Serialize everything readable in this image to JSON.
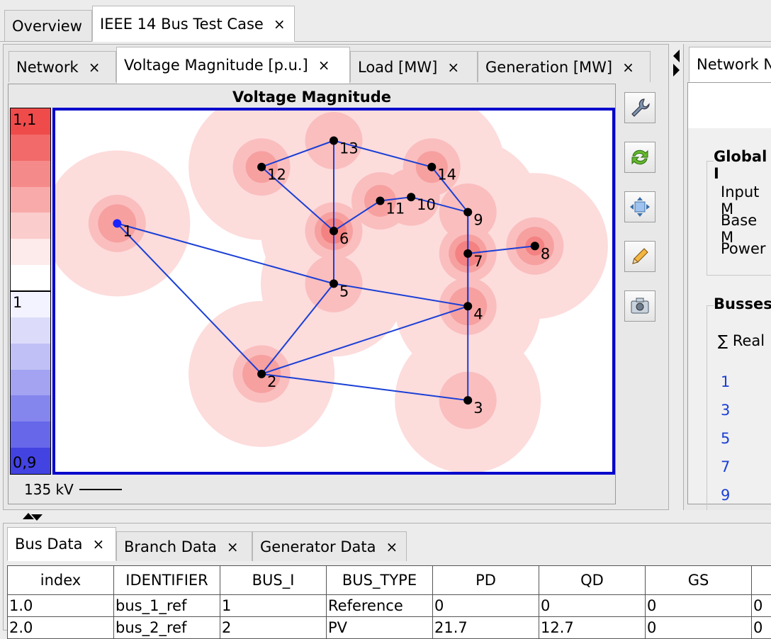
{
  "doc_tabs": [
    {
      "label": "Overview"
    },
    {
      "label": "IEEE 14 Bus Test Case",
      "close": "×"
    }
  ],
  "view_tabs": [
    {
      "label": "Network",
      "close": "×"
    },
    {
      "label": "Voltage Magnitude [p.u.]",
      "close": "×"
    },
    {
      "label": "Load [MW]",
      "close": "×"
    },
    {
      "label": "Generation [MW]",
      "close": "×"
    }
  ],
  "map": {
    "title": "Voltage Magnitude",
    "legend_max": "1,1",
    "legend_mid": "1",
    "legend_min": "0,9",
    "legend_colors": [
      "#ef4b4b",
      "#f36a6a",
      "#f58a8a",
      "#f8aaaa",
      "#fbcccc",
      "#fdeaea",
      "#ffffff",
      "#f3f3ff",
      "#dcdcfa",
      "#c0c0f6",
      "#a3a3f2",
      "#8585ee",
      "#6767ea",
      "#4343e2"
    ],
    "scale_label": "135 kV",
    "frame_color": "#0000cc",
    "line_color": "#1a3fd6",
    "buses": [
      {
        "id": "1",
        "x": -69.0,
        "y": 15.0,
        "ref": true
      },
      {
        "id": "2",
        "x": -55.0,
        "y": -5.0
      },
      {
        "id": "3",
        "x": -35.0,
        "y": -8.5
      },
      {
        "id": "4",
        "x": -35.0,
        "y": 4.0
      },
      {
        "id": "5",
        "x": -48.0,
        "y": 7.0
      },
      {
        "id": "6",
        "x": -48.0,
        "y": 14.0
      },
      {
        "id": "7",
        "x": -35.0,
        "y": 11.0
      },
      {
        "id": "8",
        "x": -28.5,
        "y": 12.0
      },
      {
        "id": "9",
        "x": -35.0,
        "y": 16.5
      },
      {
        "id": "10",
        "x": -40.5,
        "y": 18.5
      },
      {
        "id": "11",
        "x": -43.5,
        "y": 18.0
      },
      {
        "id": "12",
        "x": -55.0,
        "y": 22.5
      },
      {
        "id": "13",
        "x": -48.0,
        "y": 26.0
      },
      {
        "id": "14",
        "x": -38.5,
        "y": 22.5
      }
    ],
    "branches": [
      [
        "1",
        "2"
      ],
      [
        "1",
        "5"
      ],
      [
        "2",
        "3"
      ],
      [
        "2",
        "4"
      ],
      [
        "2",
        "5"
      ],
      [
        "3",
        "4"
      ],
      [
        "4",
        "5"
      ],
      [
        "4",
        "7"
      ],
      [
        "4",
        "9"
      ],
      [
        "5",
        "6"
      ],
      [
        "6",
        "11"
      ],
      [
        "6",
        "12"
      ],
      [
        "6",
        "13"
      ],
      [
        "7",
        "8"
      ],
      [
        "7",
        "9"
      ],
      [
        "9",
        "10"
      ],
      [
        "9",
        "14"
      ],
      [
        "10",
        "11"
      ],
      [
        "12",
        "13"
      ],
      [
        "13",
        "14"
      ]
    ],
    "halos": [
      {
        "bus": "1",
        "levels": [
          0.3,
          0.55,
          0.7
        ]
      },
      {
        "bus": "2",
        "levels": [
          0.3,
          0.55,
          0.7
        ]
      },
      {
        "bus": "3",
        "levels": [
          0.3,
          0.55
        ]
      },
      {
        "bus": "4",
        "levels": [
          0.3,
          0.55,
          0.7
        ]
      },
      {
        "bus": "5",
        "levels": [
          0.3,
          0.55
        ]
      },
      {
        "bus": "6",
        "levels": [
          0.3,
          0.55,
          0.7,
          0.8
        ]
      },
      {
        "bus": "7",
        "levels": [
          0.3,
          0.55,
          0.7,
          0.8
        ]
      },
      {
        "bus": "8",
        "levels": [
          0.3,
          0.55,
          0.7,
          0.85,
          0.95
        ]
      },
      {
        "bus": "9",
        "levels": [
          0.3,
          0.55
        ]
      },
      {
        "bus": "10",
        "levels": [
          0.3,
          0.55
        ]
      },
      {
        "bus": "11",
        "levels": [
          0.3,
          0.55,
          0.75
        ]
      },
      {
        "bus": "12",
        "levels": [
          0.3,
          0.55,
          0.75
        ]
      },
      {
        "bus": "13",
        "levels": [
          0.3,
          0.55
        ]
      },
      {
        "bus": "14",
        "levels": [
          0.3,
          0.55,
          0.75
        ]
      }
    ]
  },
  "tools": [
    {
      "name": "settings-wrench-icon"
    },
    {
      "name": "refresh-icon"
    },
    {
      "name": "fit-view-icon"
    },
    {
      "name": "edit-pencil-icon"
    },
    {
      "name": "snapshot-camera-icon"
    }
  ],
  "right_panel": {
    "tab_label": "Network N",
    "global_label": "Global I",
    "input_label": "Input M",
    "base_label": "Base M",
    "power_label": "Power",
    "busses_label": "Busses",
    "sum_label": "∑ Real",
    "bus_list": [
      "1",
      "3",
      "5",
      "7",
      "9"
    ]
  },
  "bottom_tabs": [
    {
      "label": "Bus Data",
      "close": "×"
    },
    {
      "label": "Branch Data",
      "close": "×"
    },
    {
      "label": "Generator Data",
      "close": "×"
    }
  ],
  "table": {
    "columns": [
      "index",
      "IDENTIFIER",
      "BUS_I",
      "BUS_TYPE",
      "PD",
      "QD",
      "GS",
      ""
    ],
    "rows": [
      [
        "1.0",
        "bus_1_ref",
        "1",
        "Reference",
        "0",
        "0",
        "0",
        "0"
      ],
      [
        "2.0",
        "bus_2_ref",
        "2",
        "PV",
        "21.7",
        "12.7",
        "0",
        "0"
      ]
    ]
  }
}
